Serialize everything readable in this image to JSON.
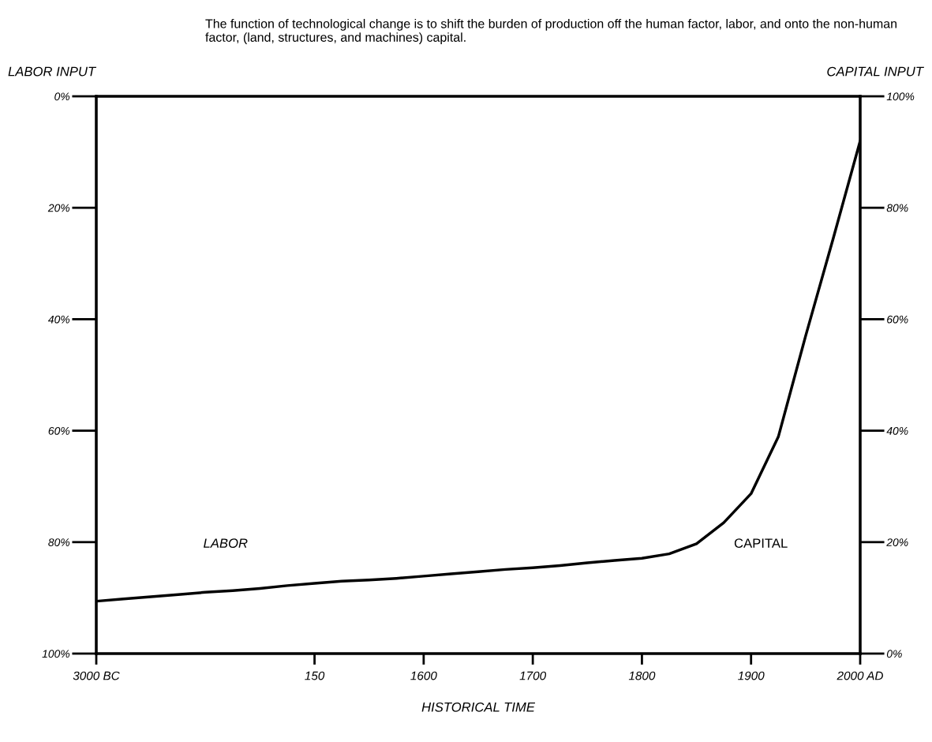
{
  "chart_data": {
    "type": "line",
    "title": "The function of technological change is to shift the burden of production off the human factor, labor, and onto the non-human factor, (land, structures, and machines) capital.",
    "ylabel": "LABOR INPUT",
    "y2label": "CAPITAL INPUT",
    "xlabel": "HISTORICAL TIME",
    "annotations": [
      "LABOR",
      "CAPITAL"
    ],
    "categories": [
      "3000 BC",
      null,
      null,
      null,
      null,
      null,
      null,
      null,
      "150",
      null,
      null,
      null,
      "1600",
      null,
      null,
      null,
      "1700",
      null,
      null,
      null,
      "1800",
      null,
      null,
      null,
      "1900",
      null,
      null,
      null,
      "2000 AD"
    ],
    "series": [
      {
        "color": "#000000",
        "values": [
          90.6,
          90.2,
          89.8,
          89.4,
          89.0,
          88.7,
          88.3,
          87.8,
          87.4,
          87.0,
          86.8,
          86.5,
          86.1,
          85.7,
          85.3,
          84.9,
          84.6,
          84.2,
          83.7,
          83.3,
          82.9,
          82.1,
          80.3,
          76.5,
          71.3,
          61.1,
          43.0,
          25.7,
          8.0
        ]
      }
    ],
    "ylim": [
      100,
      0
    ],
    "yticks": [
      {
        "value": 0,
        "label": "0%"
      },
      {
        "value": 20,
        "label": "20%"
      },
      {
        "value": 40,
        "label": "40%"
      },
      {
        "value": 60,
        "label": "60%"
      },
      {
        "value": 80,
        "label": "80%"
      },
      {
        "value": 100,
        "label": "100%"
      }
    ],
    "y2lim": [
      0,
      100
    ],
    "y2ticks": [
      {
        "value": 0,
        "label": "0%"
      },
      {
        "value": 20,
        "label": "20%"
      },
      {
        "value": 40,
        "label": "40%"
      },
      {
        "value": 60,
        "label": "60%"
      },
      {
        "value": 80,
        "label": "80%"
      },
      {
        "value": 100,
        "label": "100%"
      }
    ],
    "grid": false,
    "legend": false,
    "marker": "none",
    "line_style": "solid"
  }
}
